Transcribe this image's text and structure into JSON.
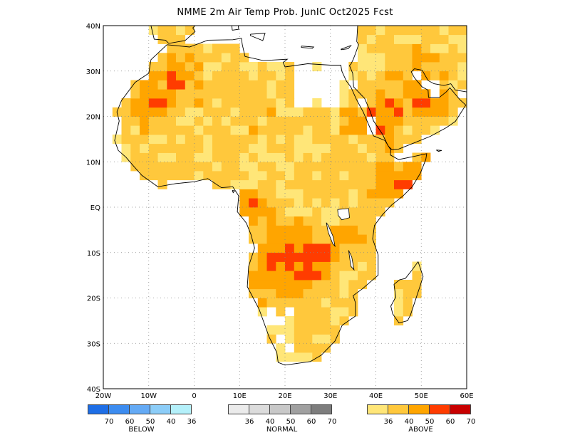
{
  "title": "NMME 2m Air Temp Prob. JunIC  Oct2025 Fcst",
  "map": {
    "lon_range": [
      -20,
      60
    ],
    "lat_range": [
      -40,
      40
    ],
    "lat_labels": [
      "40N",
      "30N",
      "20N",
      "10N",
      "EQ",
      "10S",
      "20S",
      "30S",
      "40S"
    ],
    "lon_labels": [
      "20W",
      "10W",
      "0",
      "10E",
      "20E",
      "30E",
      "40E",
      "50E",
      "60E"
    ],
    "grid": "dotted",
    "background_color": "#ffffff",
    "coastline_color": "#000000"
  },
  "legend": {
    "below": {
      "caption": "BELOW",
      "labels": [
        "70",
        "60",
        "50",
        "40",
        "36"
      ],
      "colors": [
        "#1e6ee6",
        "#3c8cf0",
        "#64aaf5",
        "#8ccdf8",
        "#b4f0fa"
      ]
    },
    "normal": {
      "caption": "NORMAL",
      "labels": [
        "36",
        "40",
        "50",
        "60",
        "70"
      ],
      "colors": [
        "#ebebeb",
        "#dcdcdc",
        "#c8c8c8",
        "#a0a0a0",
        "#7d7d7d"
      ]
    },
    "above": {
      "caption": "ABOVE",
      "labels": [
        "36",
        "40",
        "50",
        "60",
        "70"
      ],
      "colors": [
        "#ffe678",
        "#ffc83c",
        "#ffa500",
        "#ff3c00",
        "#c80000"
      ]
    }
  }
}
